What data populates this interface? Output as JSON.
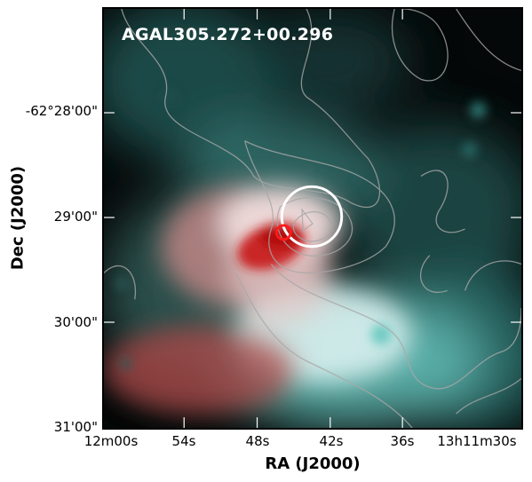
{
  "figure": {
    "source_label": "AGAL305.272+00.296",
    "xlabel": "RA (J2000)",
    "ylabel": "Dec (J2000)",
    "y_ticks": [
      "-62°28'00\"",
      "29'00\"",
      "30'00\"",
      "31'00\""
    ],
    "x_ticks": [
      "12m00s",
      "54s",
      "48s",
      "42s",
      "36s",
      "13h11m30s"
    ]
  },
  "colors": {
    "background": "#050808",
    "cyan_emission": "#7fd9d2",
    "red_emission": "#d42020",
    "contour": "#a8a8a8",
    "marker_white": "#ffffff",
    "marker_red": "#ff1a1a"
  }
}
